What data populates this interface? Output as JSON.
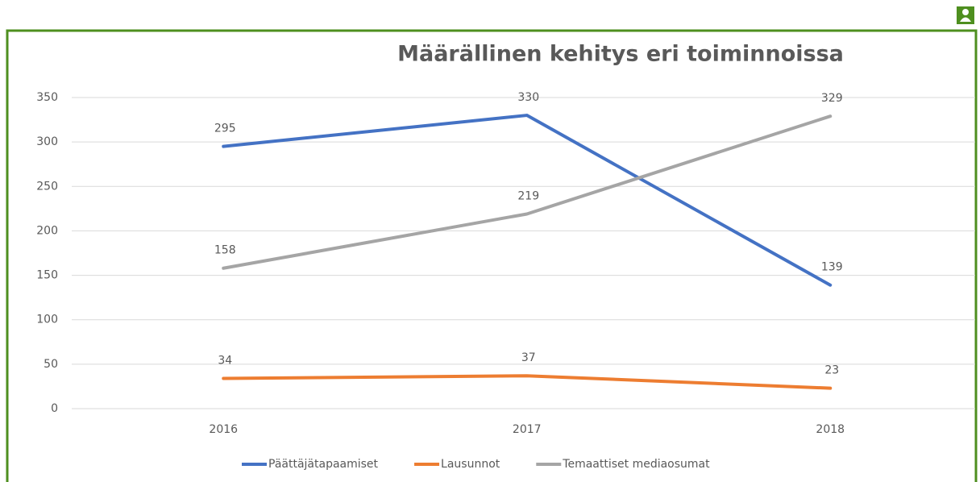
{
  "chart_data": {
    "type": "line",
    "title": "Määrällinen kehitys eri toiminnoissa",
    "categories": [
      "2016",
      "2017",
      "2018"
    ],
    "series": [
      {
        "name": "Päättäjätapaamiset",
        "color": "#4472c4",
        "values": [
          295,
          330,
          139
        ]
      },
      {
        "name": "Lausunnot",
        "color": "#ed7d31",
        "values": [
          34,
          37,
          23
        ]
      },
      {
        "name": "Temaattiset mediaosumat",
        "color": "#a5a5a5",
        "values": [
          158,
          219,
          329
        ]
      }
    ],
    "ylim": [
      0,
      350
    ],
    "yticks": [
      0,
      50,
      100,
      150,
      200,
      250,
      300,
      350
    ],
    "grid": true,
    "legend": "bottom"
  }
}
